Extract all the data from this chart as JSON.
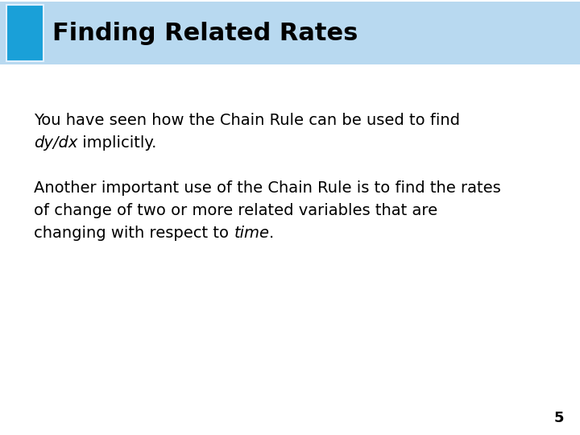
{
  "title": "Finding Related Rates",
  "title_bg_color": "#b8d9f0",
  "title_text_color": "#000000",
  "title_fontsize": 22,
  "blue_box_color": "#1aa0d8",
  "blue_box_border_color": "#e0f0ff",
  "body_bg_color": "#ffffff",
  "para1_line1": "You have seen how the Chain Rule can be used to find",
  "para1_line2_italic": "dy/dx",
  "para1_line2_normal": " implicitly.",
  "para2_line1": "Another important use of the Chain Rule is to find the rates",
  "para2_line2": "of change of two or more related variables that are",
  "para2_line3_normal": "changing with respect to ",
  "para2_line3_italic": "time",
  "para2_line3_end": ".",
  "body_fontsize": 14,
  "page_number": "5",
  "page_number_fontsize": 13,
  "text_color": "#000000"
}
